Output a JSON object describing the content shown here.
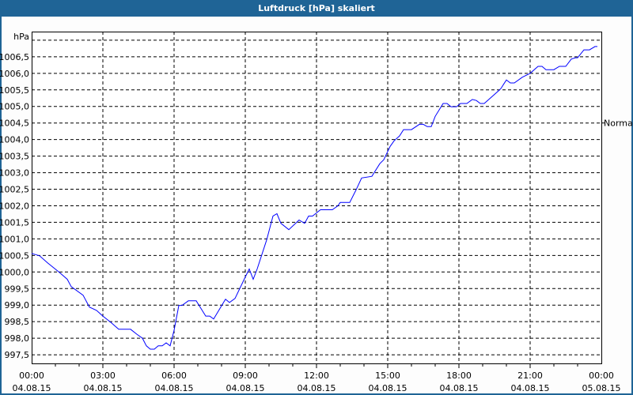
{
  "window": {
    "title": "Luftdruck [hPa] skaliert",
    "accent": "#1f6496"
  },
  "chart_data": {
    "type": "line",
    "title": "Luftdruck [hPa] skaliert",
    "ylabel": "hPa",
    "xlabel": "",
    "ylim": [
      997.24,
      1007.26
    ],
    "xlim": [
      "04.08.15 00:00",
      "05.08.15 00:00"
    ],
    "grid": true,
    "line_color": "#0000ff",
    "y_ticks": [
      "997,5",
      "998,0",
      "998,5",
      "999,0",
      "999,5",
      "1000,0",
      "1000,5",
      "1001,0",
      "1001,5",
      "1002,0",
      "1002,5",
      "1003,0",
      "1003,5",
      "1004,0",
      "1004,5",
      "1005,0",
      "1005,5",
      "1006,0",
      "1006,5"
    ],
    "x_ticks": [
      {
        "time": "00:00",
        "date": "04.08.15"
      },
      {
        "time": "03:00",
        "date": "04.08.15"
      },
      {
        "time": "06:00",
        "date": "04.08.15"
      },
      {
        "time": "09:00",
        "date": "04.08.15"
      },
      {
        "time": "12:00",
        "date": "04.08.15"
      },
      {
        "time": "15:00",
        "date": "04.08.15"
      },
      {
        "time": "18:00",
        "date": "04.08.15"
      },
      {
        "time": "21:00",
        "date": "04.08.15"
      },
      {
        "time": "00:00",
        "date": "05.08.15"
      }
    ],
    "reference": {
      "label": "Normal",
      "value": 1004.5
    },
    "series": [
      {
        "x": [
          "00:00",
          "00:20",
          "00:40",
          "01:10",
          "01:30",
          "01:40",
          "02:10",
          "02:26",
          "02:44",
          "03:00",
          "03:20",
          "03:40",
          "04:10",
          "04:26",
          "04:40",
          "04:50",
          "05:00",
          "05:10",
          "05:20",
          "05:30",
          "05:40",
          "05:50",
          "06:00",
          "06:12",
          "06:20",
          "06:36",
          "06:56",
          "07:20",
          "07:30",
          "07:40",
          "07:46",
          "08:10",
          "08:20",
          "08:34",
          "09:00",
          "09:10",
          "09:20",
          "09:30",
          "09:54",
          "10:10",
          "10:20",
          "10:30",
          "10:50",
          "11:16",
          "11:30",
          "11:40",
          "11:50",
          "12:10",
          "12:40",
          "12:54",
          "13:00",
          "13:24",
          "13:40",
          "13:54",
          "14:20",
          "14:40",
          "14:50",
          "15:06",
          "15:16",
          "15:30",
          "15:40",
          "16:00",
          "16:20",
          "16:30",
          "16:40",
          "16:50",
          "17:00",
          "17:20",
          "17:30",
          "17:40",
          "17:54",
          "18:04",
          "18:20",
          "18:34",
          "18:44",
          "18:54",
          "19:04",
          "19:40",
          "19:46",
          "20:00",
          "20:10",
          "20:20",
          "20:40",
          "21:00",
          "21:20",
          "21:30",
          "21:40",
          "22:00",
          "22:14",
          "22:30",
          "22:44",
          "22:54",
          "23:00",
          "23:16",
          "23:30",
          "23:44",
          "23:50"
        ],
        "y": [
          1000.56,
          1000.49,
          1000.28,
          999.99,
          999.78,
          999.56,
          999.3,
          998.94,
          998.84,
          998.67,
          998.48,
          998.27,
          998.27,
          998.12,
          998.0,
          997.77,
          997.67,
          997.67,
          997.77,
          997.77,
          997.86,
          997.77,
          998.24,
          998.99,
          998.99,
          999.13,
          999.13,
          998.67,
          998.67,
          998.58,
          998.7,
          999.18,
          999.08,
          999.2,
          999.85,
          1000.09,
          999.78,
          1000.09,
          1000.97,
          1001.69,
          1001.76,
          1001.47,
          1001.28,
          1001.57,
          1001.47,
          1001.69,
          1001.69,
          1001.88,
          1001.88,
          1002.0,
          1002.1,
          1002.1,
          1002.48,
          1002.84,
          1002.89,
          1003.27,
          1003.39,
          1003.79,
          1003.96,
          1004.11,
          1004.3,
          1004.3,
          1004.46,
          1004.46,
          1004.39,
          1004.39,
          1004.7,
          1005.09,
          1005.09,
          1004.99,
          1004.99,
          1005.09,
          1005.09,
          1005.21,
          1005.18,
          1005.09,
          1005.09,
          1005.47,
          1005.54,
          1005.8,
          1005.71,
          1005.71,
          1005.88,
          1006.0,
          1006.21,
          1006.21,
          1006.11,
          1006.11,
          1006.21,
          1006.21,
          1006.43,
          1006.47,
          1006.47,
          1006.71,
          1006.71,
          1006.81,
          1006.81
        ]
      }
    ]
  }
}
